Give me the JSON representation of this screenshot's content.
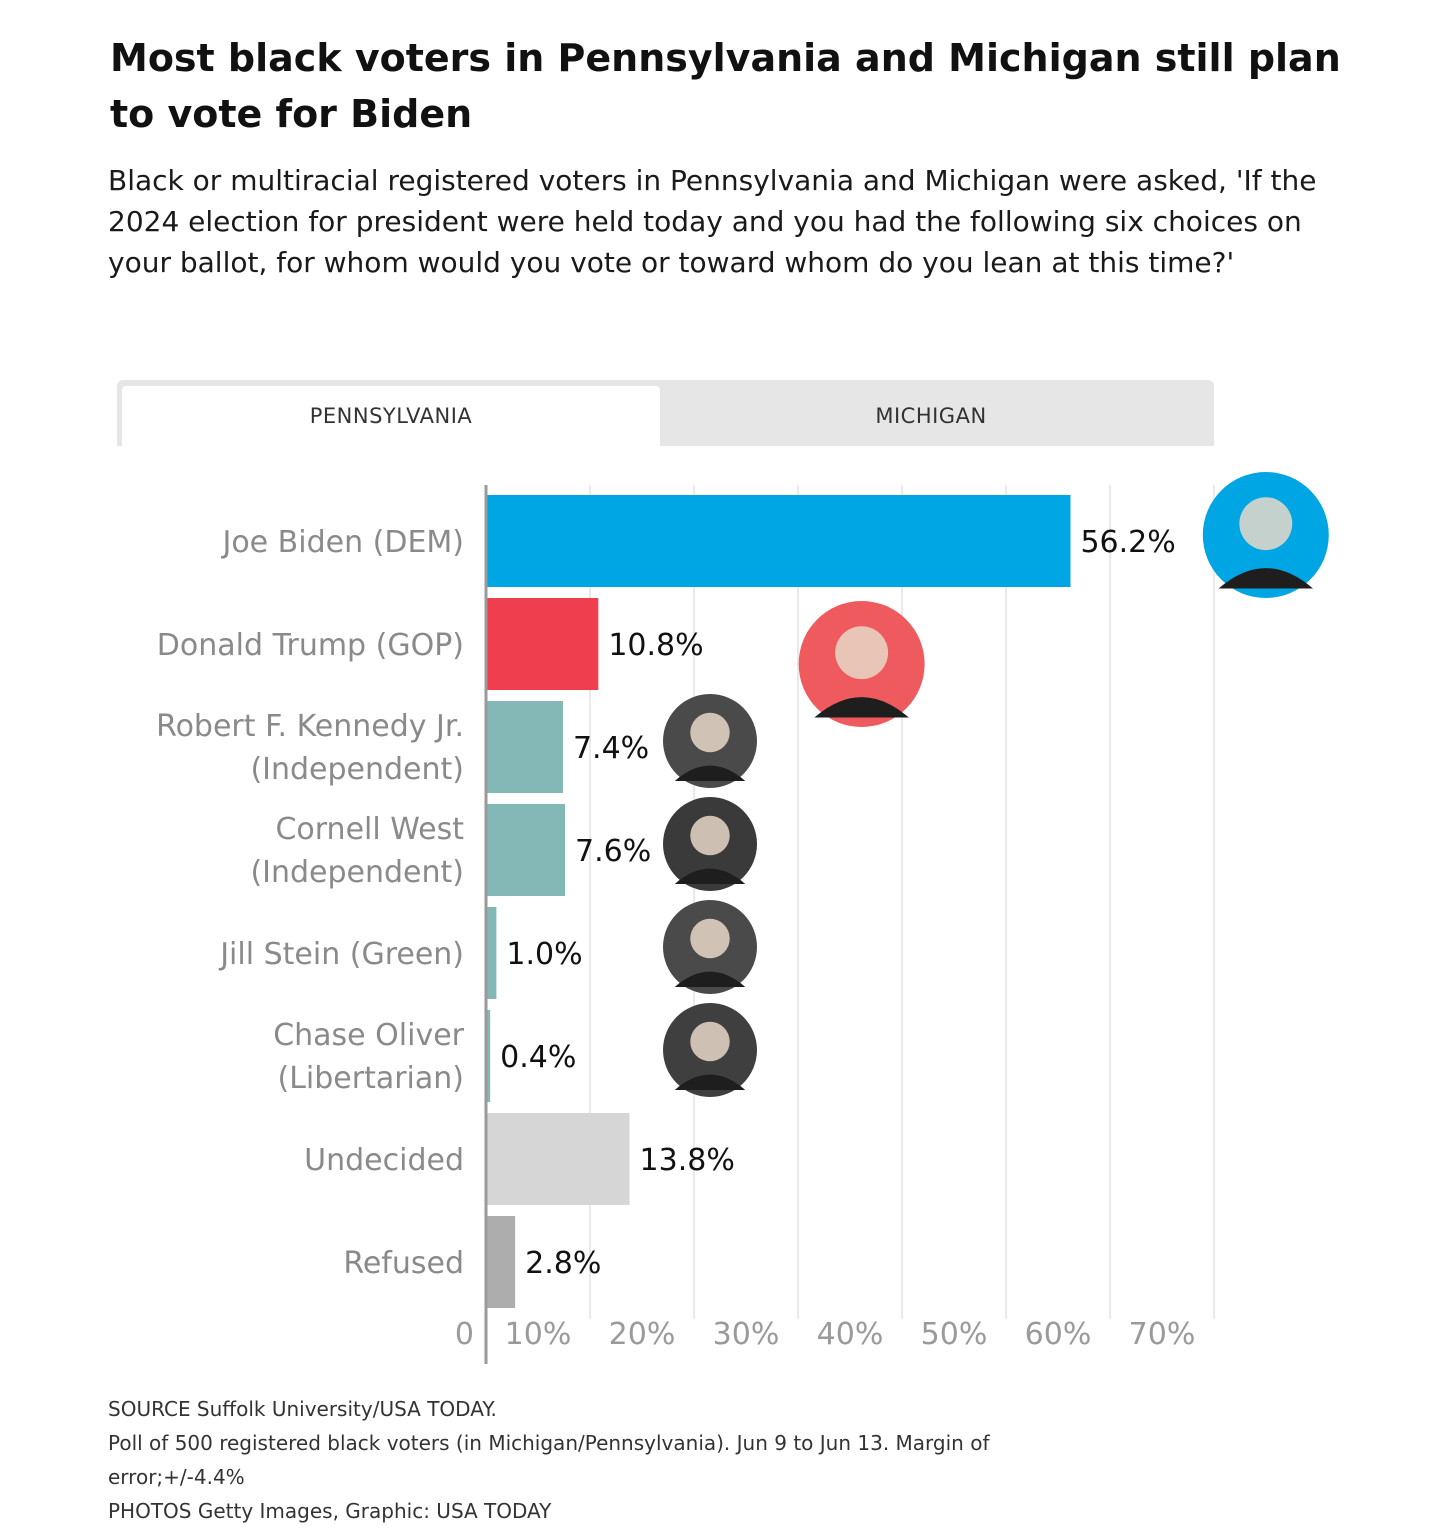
{
  "header": {
    "title": "Most black voters in Pennsylvania and Michigan still plan to vote for Biden",
    "subtitle": "Black or multiracial registered voters in Pennsylvania and Michigan were asked, 'If the 2024 election for president were held today and you had the following six choices on your ballot, for whom would you vote or toward whom do you lean at this time?'"
  },
  "tabs": [
    {
      "label": "PENNSYLVANIA",
      "selected": true
    },
    {
      "label": "MICHIGAN",
      "selected": false
    }
  ],
  "chart_data": {
    "type": "bar",
    "orientation": "horizontal",
    "categories": [
      [
        "Joe Biden (DEM)"
      ],
      [
        "Donald Trump (GOP)"
      ],
      [
        "Robert F. Kennedy Jr.",
        "(Independent)"
      ],
      [
        "Cornell West",
        "(Independent)"
      ],
      [
        "Jill Stein (Green)"
      ],
      [
        "Chase Oliver",
        "(Libertarian)"
      ],
      [
        "Undecided"
      ],
      [
        "Refused"
      ]
    ],
    "values": [
      56.2,
      10.8,
      7.4,
      7.6,
      1.0,
      0.4,
      13.8,
      2.8
    ],
    "value_labels": [
      "56.2%",
      "10.8%",
      "7.4%",
      "7.6%",
      "1.0%",
      "0.4%",
      "13.8%",
      "2.8%"
    ],
    "colors": [
      "#00a5e3",
      "#ef3e4e",
      "#84b8b6",
      "#84b8b6",
      "#84b8b6",
      "#84b8b6",
      "#d6d6d6",
      "#adadad"
    ],
    "photo_rings": [
      "#00a5e3",
      "#ef5a5f",
      "#4a4a4a",
      "#3a3a3a",
      "#4a4a4a",
      "#3f3f3f",
      null,
      null
    ],
    "xlim": [
      0,
      70
    ],
    "xticks": [
      0,
      10,
      20,
      30,
      40,
      50,
      60,
      70
    ],
    "xtick_labels": [
      "0",
      "10%",
      "20%",
      "30%",
      "40%",
      "50%",
      "60%",
      "70%"
    ],
    "grid": true
  },
  "footer": {
    "source": "SOURCE Suffolk University/USA TODAY.",
    "note_line1": "Poll of 500  registered black voters (in Michigan/Pennsylvania). Jun 9 to Jun 13. Margin of",
    "note_line2": "error;+/-4.4%",
    "credits": "PHOTOS Getty Images, Graphic: USA TODAY"
  }
}
